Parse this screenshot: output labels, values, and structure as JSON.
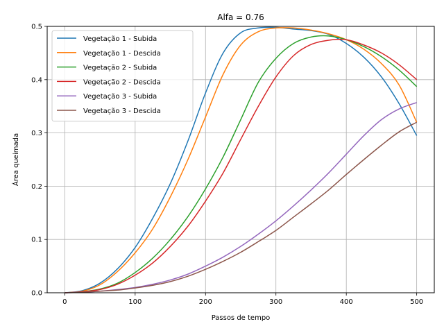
{
  "chart_data": {
    "type": "line",
    "title": "Alfa = 0.76",
    "xlabel": "Passos de tempo",
    "ylabel": "Área queimada",
    "xlim": [
      -25,
      525
    ],
    "ylim": [
      0,
      0.5
    ],
    "xticks": [
      0,
      100,
      200,
      300,
      400,
      500
    ],
    "yticks": [
      0.0,
      0.1,
      0.2,
      0.3,
      0.4,
      0.5
    ],
    "xtick_labels": [
      "0",
      "100",
      "200",
      "300",
      "400",
      "500"
    ],
    "ytick_labels": [
      "0.0",
      "0.1",
      "0.2",
      "0.3",
      "0.4",
      "0.5"
    ],
    "grid": true,
    "legend_position": "top-left",
    "x": [
      0,
      25,
      50,
      75,
      100,
      125,
      150,
      175,
      200,
      225,
      250,
      275,
      300,
      325,
      350,
      375,
      400,
      425,
      450,
      475,
      500
    ],
    "series": [
      {
        "name": "Vegetação 1 - Subida",
        "color": "#1f77b4",
        "values": [
          0.0,
          0.004,
          0.018,
          0.045,
          0.085,
          0.14,
          0.205,
          0.285,
          0.375,
          0.45,
          0.488,
          0.497,
          0.498,
          0.495,
          0.492,
          0.485,
          0.468,
          0.442,
          0.405,
          0.355,
          0.295
        ]
      },
      {
        "name": "Vegetação 1 - Descida",
        "color": "#ff7f0e",
        "values": [
          0.0,
          0.003,
          0.015,
          0.04,
          0.075,
          0.12,
          0.18,
          0.25,
          0.33,
          0.41,
          0.465,
          0.49,
          0.497,
          0.497,
          0.493,
          0.486,
          0.475,
          0.457,
          0.43,
          0.39,
          0.32
        ]
      },
      {
        "name": "Vegetação 2 - Subida",
        "color": "#2ca02c",
        "values": [
          0.0,
          0.002,
          0.007,
          0.018,
          0.038,
          0.065,
          0.1,
          0.143,
          0.195,
          0.255,
          0.325,
          0.395,
          0.44,
          0.468,
          0.48,
          0.482,
          0.475,
          0.462,
          0.443,
          0.418,
          0.387
        ]
      },
      {
        "name": "Vegetação 2 - Descida",
        "color": "#d62728",
        "values": [
          0.0,
          0.002,
          0.006,
          0.016,
          0.033,
          0.056,
          0.087,
          0.125,
          0.172,
          0.225,
          0.288,
          0.35,
          0.405,
          0.445,
          0.466,
          0.474,
          0.475,
          0.465,
          0.45,
          0.428,
          0.4
        ]
      },
      {
        "name": "Vegetação 3 - Subida",
        "color": "#9467bd",
        "values": [
          0.0,
          0.001,
          0.003,
          0.006,
          0.01,
          0.016,
          0.024,
          0.035,
          0.05,
          0.067,
          0.087,
          0.11,
          0.135,
          0.163,
          0.193,
          0.225,
          0.26,
          0.295,
          0.325,
          0.345,
          0.357
        ]
      },
      {
        "name": "Vegetação 3 - Descida",
        "color": "#8c564b",
        "values": [
          0.0,
          0.001,
          0.003,
          0.005,
          0.009,
          0.014,
          0.021,
          0.031,
          0.044,
          0.059,
          0.076,
          0.096,
          0.117,
          0.142,
          0.167,
          0.193,
          0.222,
          0.25,
          0.277,
          0.302,
          0.32
        ]
      }
    ]
  }
}
